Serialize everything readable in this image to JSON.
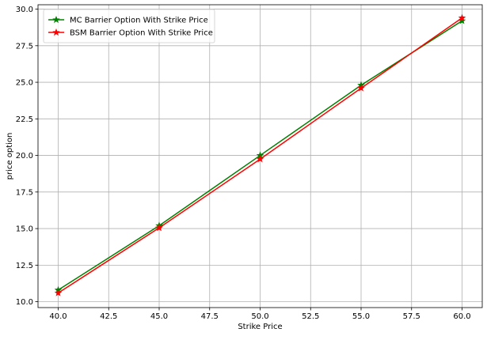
{
  "chart_data": {
    "type": "line",
    "title": "",
    "xlabel": "Strike Price",
    "ylabel": "price option",
    "xlim": [
      39.0,
      61.0
    ],
    "ylim": [
      9.6,
      30.3
    ],
    "xticks": [
      40.0,
      42.5,
      45.0,
      47.5,
      50.0,
      52.5,
      55.0,
      57.5,
      60.0
    ],
    "xtick_labels": [
      "40.0",
      "42.5",
      "45.0",
      "47.5",
      "50.0",
      "52.5",
      "55.0",
      "57.5",
      "60.0"
    ],
    "yticks": [
      10.0,
      12.5,
      15.0,
      17.5,
      20.0,
      22.5,
      25.0,
      27.5,
      30.0
    ],
    "ytick_labels": [
      "10.0",
      "12.5",
      "15.0",
      "17.5",
      "20.0",
      "22.5",
      "25.0",
      "27.5",
      "30.0"
    ],
    "grid": true,
    "legend_position": "top-left",
    "x": [
      40,
      45,
      50,
      55,
      60
    ],
    "series": [
      {
        "name": "MC Barrier Option With Strike Price",
        "color": "#008000",
        "marker": "star",
        "values": [
          10.8,
          15.2,
          20.0,
          24.8,
          29.2
        ]
      },
      {
        "name": "BSM Barrier Option With Strike Price",
        "color": "#ff0000",
        "marker": "star",
        "values": [
          10.6,
          15.05,
          19.75,
          24.6,
          29.4
        ]
      }
    ]
  }
}
